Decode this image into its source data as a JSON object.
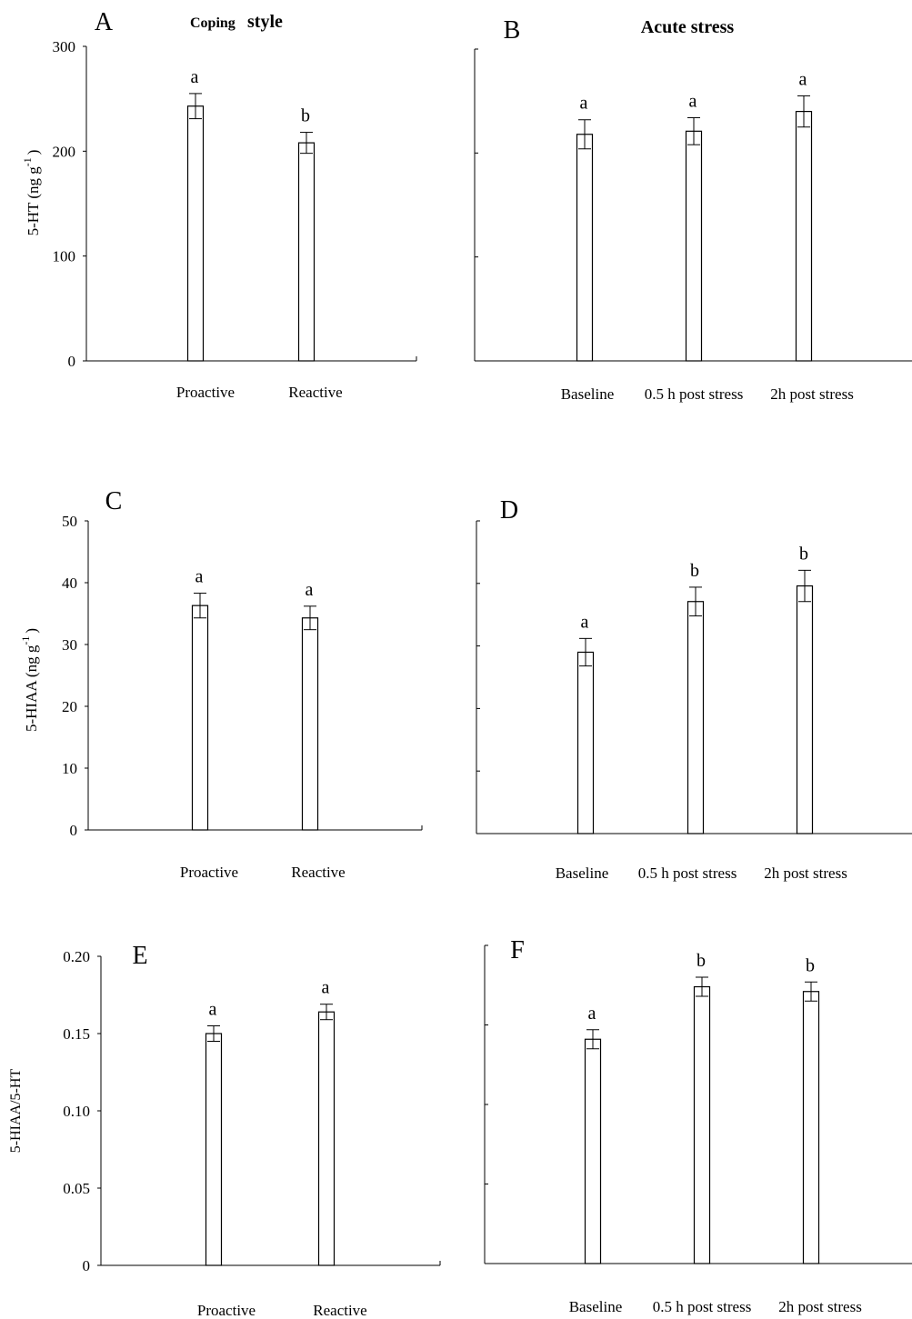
{
  "titles": {
    "coping_small": "Coping",
    "coping_big": "style",
    "acute": "Acute stress"
  },
  "chart_data": [
    {
      "panel": "A",
      "type": "bar",
      "categories": [
        "Proactive",
        "Reactive"
      ],
      "values": [
        243,
        208
      ],
      "errors": [
        12,
        10
      ],
      "letters": [
        "a",
        "b"
      ],
      "ylim": [
        0,
        300
      ],
      "yticks": [
        0,
        100,
        200,
        300
      ],
      "yticklabels": [
        "0",
        "100",
        "200",
        "300"
      ],
      "ylabel": "5-HT (ng g",
      "ylabel_sup": "-1",
      "ylabel_tail": ")"
    },
    {
      "panel": "B",
      "type": "bar",
      "categories": [
        "Baseline",
        "0.5 h post stress",
        "2h post stress"
      ],
      "values": [
        218,
        221,
        240
      ],
      "errors": [
        14,
        13,
        15
      ],
      "letters": [
        "a",
        "a",
        "a"
      ],
      "ylim": [
        0,
        300
      ],
      "yticks": [
        0,
        100,
        200,
        300
      ],
      "yticklabels": []
    },
    {
      "panel": "C",
      "type": "bar",
      "categories": [
        "Proactive",
        "Reactive"
      ],
      "values": [
        36.3,
        34.3
      ],
      "errors": [
        2.0,
        1.9
      ],
      "letters": [
        "a",
        "a"
      ],
      "ylim": [
        0,
        50
      ],
      "yticks": [
        0,
        10,
        20,
        30,
        40,
        50
      ],
      "yticklabels": [
        "0",
        "10",
        "20",
        "30",
        "40",
        "50"
      ],
      "ylabel": "5-HIAA (ng g",
      "ylabel_sup": "-1",
      "ylabel_tail": ")"
    },
    {
      "panel": "D",
      "type": "bar",
      "categories": [
        "Baseline",
        "0.5 h post stress",
        "2h post stress"
      ],
      "values": [
        29.0,
        37.1,
        39.6
      ],
      "errors": [
        2.2,
        2.3,
        2.5
      ],
      "letters": [
        "a",
        "b",
        "b"
      ],
      "ylim": [
        0,
        50
      ],
      "yticks": [
        0,
        10,
        20,
        30,
        40,
        50
      ],
      "yticklabels": []
    },
    {
      "panel": "E",
      "type": "bar",
      "categories": [
        "Proactive",
        "Reactive"
      ],
      "values": [
        0.15,
        0.164
      ],
      "errors": [
        0.005,
        0.005
      ],
      "letters": [
        "a",
        "a"
      ],
      "ylim": [
        0,
        0.2
      ],
      "yticks": [
        0,
        0.05,
        0.1,
        0.15,
        0.2
      ],
      "yticklabels": [
        "0",
        "0.05",
        "0.10",
        "0.15",
        "0.20"
      ],
      "ylabel": "5-HIAA/5-HT"
    },
    {
      "panel": "F",
      "type": "bar",
      "categories": [
        "Baseline",
        "0.5 h post stress",
        "2h post stress"
      ],
      "values": [
        0.141,
        0.174,
        0.171
      ],
      "errors": [
        0.006,
        0.006,
        0.006
      ],
      "letters": [
        "a",
        "b",
        "b"
      ],
      "ylim": [
        0,
        0.2
      ],
      "yticks": [
        0,
        0.05,
        0.1,
        0.15,
        0.2
      ],
      "yticklabels": []
    }
  ]
}
